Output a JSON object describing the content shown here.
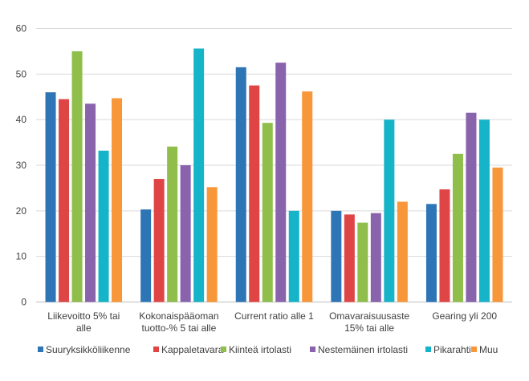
{
  "chart_data": {
    "type": "bar",
    "title": "",
    "xlabel": "",
    "ylabel": "",
    "ylim": [
      0,
      60
    ],
    "yticks": [
      0,
      10,
      20,
      30,
      40,
      50,
      60
    ],
    "grid": true,
    "legend_position": "bottom",
    "categories": [
      [
        "Liikevoitto 5% tai",
        "alle"
      ],
      [
        "Kokonaispääoman",
        "tuotto-% 5 tai alle"
      ],
      [
        "Current ratio alle 1"
      ],
      [
        "Omavaraisuusaste",
        "15% tai alle"
      ],
      [
        "Gearing yli 200"
      ]
    ],
    "series": [
      {
        "name": "Suuryksikköliikenne",
        "color": "#2e75b6",
        "values": [
          46,
          20.3,
          51.5,
          20,
          21.5
        ]
      },
      {
        "name": "Kappaletavara",
        "color": "#e04545",
        "values": [
          44.5,
          27,
          47.5,
          19.2,
          24.7
        ]
      },
      {
        "name": "Kiinteä irtolasti",
        "color": "#8fbe4a",
        "values": [
          55,
          34.1,
          39.3,
          17.4,
          32.5
        ]
      },
      {
        "name": "Nestemäinen irtolasti",
        "color": "#8a63ad",
        "values": [
          43.5,
          30,
          52.5,
          19.5,
          41.5
        ]
      },
      {
        "name": "Pikarahti",
        "color": "#16b4c8",
        "values": [
          33.2,
          55.6,
          20,
          40,
          40
        ]
      },
      {
        "name": "Muu",
        "color": "#f8973a",
        "values": [
          44.7,
          25.2,
          46.2,
          22,
          29.5
        ]
      }
    ]
  }
}
